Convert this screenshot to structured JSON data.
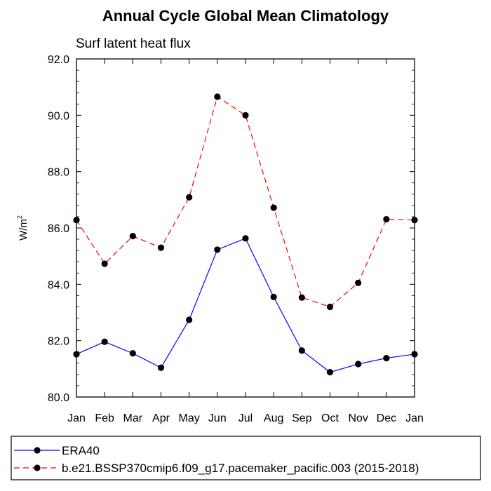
{
  "chart_data": {
    "type": "line",
    "title": "Annual Cycle Global Mean Climatology",
    "subtitle": "Surf latent heat flux",
    "xlabel": "",
    "ylabel": "W/m",
    "ylabel_superscript": "2",
    "categories": [
      "Jan",
      "Feb",
      "Mar",
      "Apr",
      "May",
      "Jun",
      "Jul",
      "Aug",
      "Sep",
      "Oct",
      "Nov",
      "Dec",
      "Jan"
    ],
    "ylim": [
      80.0,
      92.0
    ],
    "yticks": [
      "80.0",
      "82.0",
      "84.0",
      "86.0",
      "88.0",
      "90.0",
      "92.0"
    ],
    "ytick_values": [
      80,
      82,
      84,
      86,
      88,
      90,
      92
    ],
    "grid": false,
    "legend_position": "bottom",
    "series": [
      {
        "name": "ERA40",
        "color": "#0000ff",
        "line_style": "solid",
        "marker": "filled-circle",
        "values": [
          81.52,
          81.96,
          81.55,
          81.04,
          82.74,
          85.23,
          85.63,
          83.55,
          81.65,
          80.88,
          81.17,
          81.38,
          81.52
        ]
      },
      {
        "name": "b.e21.BSSP370cmip6.f09_g17.pacemaker_pacific.003 (2015-2018)",
        "color": "#ff0000",
        "line_style": "dashed",
        "marker": "filled-circle",
        "values": [
          86.28,
          84.73,
          85.71,
          85.3,
          87.09,
          90.66,
          90.0,
          86.72,
          83.53,
          83.2,
          84.05,
          86.31,
          86.28
        ]
      }
    ]
  }
}
